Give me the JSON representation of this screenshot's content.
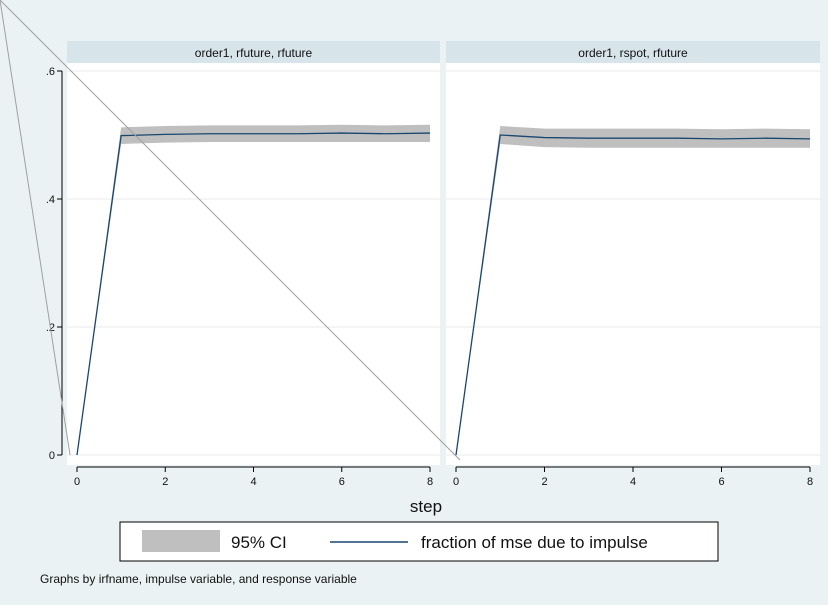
{
  "chart_data": {
    "type": "line",
    "panels": [
      {
        "title": "order1, rfuture, rfuture",
        "x": [
          0,
          1,
          2,
          3,
          4,
          5,
          6,
          7,
          8
        ],
        "series": [
          {
            "name": "fraction of mse due to impulse",
            "values": [
              0,
              0.499,
              0.501,
              0.502,
              0.502,
              0.502,
              0.503,
              0.502,
              0.503
            ]
          },
          {
            "name": "95% CI",
            "lower": [
              0,
              0.486,
              0.488,
              0.489,
              0.489,
              0.489,
              0.489,
              0.489,
              0.489
            ],
            "upper": [
              0,
              0.512,
              0.514,
              0.515,
              0.515,
              0.515,
              0.516,
              0.515,
              0.516
            ]
          }
        ]
      },
      {
        "title": "order1, rspot, rfuture",
        "x": [
          0,
          1,
          2,
          3,
          4,
          5,
          6,
          7,
          8
        ],
        "series": [
          {
            "name": "fraction of mse due to impulse",
            "values": [
              0,
              0.5,
              0.496,
              0.495,
              0.495,
              0.495,
              0.494,
              0.495,
              0.494
            ]
          },
          {
            "name": "95% CI",
            "lower": [
              0,
              0.486,
              0.481,
              0.48,
              0.48,
              0.48,
              0.48,
              0.48,
              0.48
            ],
            "upper": [
              0,
              0.514,
              0.51,
              0.51,
              0.51,
              0.51,
              0.509,
              0.51,
              0.509
            ]
          }
        ]
      }
    ],
    "xlabel": "step",
    "ylabel": "",
    "xlim": [
      0,
      8
    ],
    "ylim": [
      0,
      0.6
    ],
    "xticks": [
      "0",
      "2",
      "4",
      "6",
      "8"
    ],
    "yticks": [
      "0",
      ".2",
      ".4",
      ".6"
    ],
    "legend": {
      "position": "bottom",
      "ci_label": "95% CI",
      "line_label": "fraction of mse due to impulse"
    },
    "note": "Graphs by irfname, impulse variable, and response variable",
    "grid": true,
    "colors": {
      "background": "#eaf2f3",
      "plot_bg": "#ffffff",
      "strip": "#d7e4ea",
      "ci": "#bfbfbf",
      "line": "#1a476f",
      "grid": "#ebebeb"
    }
  }
}
